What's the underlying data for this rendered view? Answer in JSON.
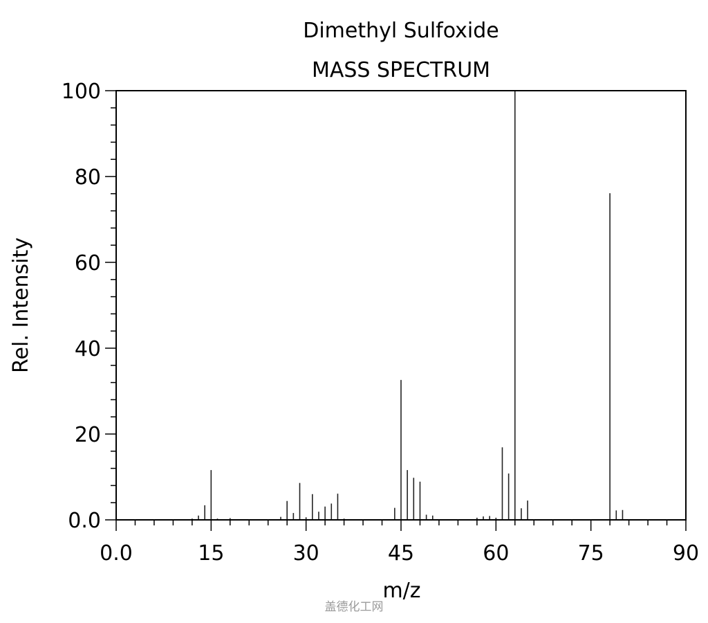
{
  "chart_data": {
    "type": "bar",
    "title": "Dimethyl Sulfoxide",
    "subtitle": "MASS SPECTRUM",
    "xlabel": "m/z",
    "ylabel": "Rel. Intensity",
    "xlim": [
      0,
      90
    ],
    "ylim": [
      0,
      100
    ],
    "xticks": [
      "0.0",
      "15",
      "30",
      "45",
      "60",
      "75",
      "90"
    ],
    "yticks": [
      "0.0",
      "20",
      "40",
      "60",
      "80",
      "100"
    ],
    "grid": false,
    "peaks": [
      {
        "x": 12,
        "y": 0.3
      },
      {
        "x": 13,
        "y": 1.0
      },
      {
        "x": 14,
        "y": 3.4
      },
      {
        "x": 15,
        "y": 11.6
      },
      {
        "x": 16,
        "y": 0.3
      },
      {
        "x": 18,
        "y": 0.4
      },
      {
        "x": 26,
        "y": 0.7
      },
      {
        "x": 27,
        "y": 4.4
      },
      {
        "x": 28,
        "y": 1.6
      },
      {
        "x": 29,
        "y": 8.6
      },
      {
        "x": 30,
        "y": 0.6
      },
      {
        "x": 31,
        "y": 6.0
      },
      {
        "x": 32,
        "y": 1.9
      },
      {
        "x": 33,
        "y": 3.1
      },
      {
        "x": 34,
        "y": 3.8
      },
      {
        "x": 35,
        "y": 6.1
      },
      {
        "x": 36,
        "y": 0.3
      },
      {
        "x": 44,
        "y": 2.8
      },
      {
        "x": 45,
        "y": 32.6
      },
      {
        "x": 46,
        "y": 11.6
      },
      {
        "x": 47,
        "y": 9.8
      },
      {
        "x": 48,
        "y": 8.9
      },
      {
        "x": 49,
        "y": 1.2
      },
      {
        "x": 50,
        "y": 1.0
      },
      {
        "x": 57,
        "y": 0.5
      },
      {
        "x": 58,
        "y": 0.8
      },
      {
        "x": 59,
        "y": 0.9
      },
      {
        "x": 60,
        "y": 0.5
      },
      {
        "x": 61,
        "y": 16.9
      },
      {
        "x": 62,
        "y": 10.8
      },
      {
        "x": 63,
        "y": 100
      },
      {
        "x": 64,
        "y": 2.7
      },
      {
        "x": 65,
        "y": 4.5
      },
      {
        "x": 78,
        "y": 76.1
      },
      {
        "x": 79,
        "y": 2.2
      },
      {
        "x": 80,
        "y": 2.3
      }
    ]
  },
  "watermark": "盖德化工网"
}
